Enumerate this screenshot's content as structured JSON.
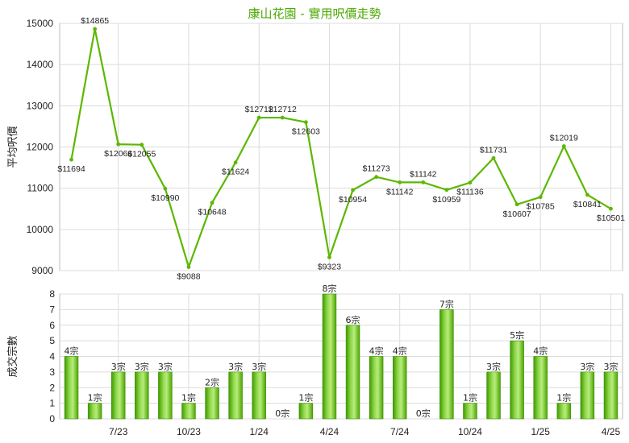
{
  "title": "康山花園 - 實用呎價走勢",
  "chart_data": [
    {
      "type": "line",
      "ylabel": "平均呎價",
      "ylim": [
        9000,
        15000
      ],
      "yticks": [
        9000,
        10000,
        11000,
        12000,
        13000,
        14000,
        15000
      ],
      "grid": true,
      "color": "#5cb800",
      "labels": [
        "$11694",
        "$14865",
        "$12066",
        "$12055",
        "$10990",
        "$9088",
        "$10648",
        "$11624",
        "$12712",
        "$12712",
        "$12603",
        "$9323",
        "$10954",
        "$11273",
        "$11142",
        "$11142",
        "$10959",
        "$11136",
        "$11731",
        "$10607",
        "$10785",
        "$12019",
        "$10841",
        "$10501"
      ],
      "values": [
        11694,
        14865,
        12066,
        12055,
        10990,
        9088,
        10648,
        11624,
        12712,
        12712,
        12603,
        9323,
        10954,
        11273,
        11142,
        11142,
        10959,
        11136,
        11731,
        10607,
        10785,
        12019,
        10841,
        10501
      ]
    },
    {
      "type": "bar",
      "ylabel": "成交宗數",
      "ylim": [
        0,
        8
      ],
      "yticks": [
        0,
        1,
        2,
        3,
        4,
        5,
        6,
        7,
        8
      ],
      "xticks": [
        "7/23",
        "10/23",
        "1/24",
        "4/24",
        "7/24",
        "10/24",
        "1/25",
        "4/25"
      ],
      "grid": true,
      "color": "#66b800",
      "labels": [
        "4宗",
        "1宗",
        "3宗",
        "3宗",
        "3宗",
        "1宗",
        "2宗",
        "3宗",
        "3宗",
        "0宗",
        "1宗",
        "8宗",
        "6宗",
        "4宗",
        "4宗",
        "0宗",
        "7宗",
        "1宗",
        "3宗",
        "5宗",
        "4宗",
        "1宗",
        "3宗",
        "3宗"
      ],
      "values": [
        4,
        1,
        3,
        3,
        3,
        1,
        2,
        3,
        3,
        0,
        1,
        8,
        6,
        4,
        4,
        0,
        7,
        1,
        3,
        5,
        4,
        1,
        3,
        3
      ]
    }
  ]
}
